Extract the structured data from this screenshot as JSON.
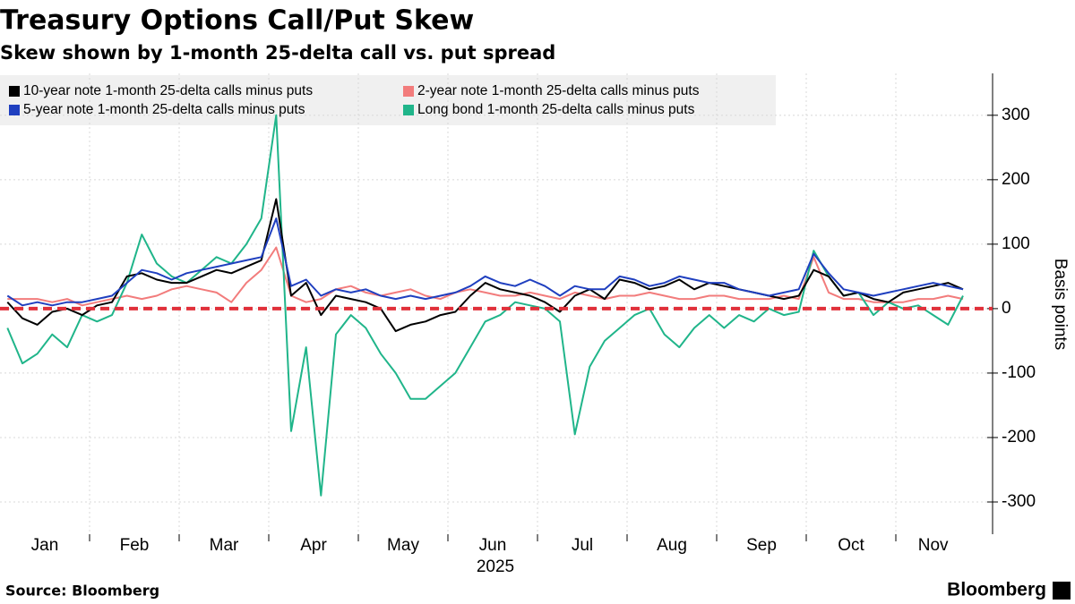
{
  "chart_data": {
    "type": "line",
    "title": "Treasury Options Call/Put Skew",
    "subtitle": "Skew shown by 1-month 25-delta call vs. put spread",
    "y_label": "Basis points",
    "source": "Source: Bloomberg",
    "brand": "Bloomberg",
    "x_year_label": "2025",
    "month_labels": [
      "Jan",
      "Feb",
      "Mar",
      "Apr",
      "May",
      "Jun",
      "Jul",
      "Aug",
      "Sep",
      "Oct",
      "Nov"
    ],
    "x": [
      "2025-01",
      "2025-01",
      "2025-01",
      "2025-01",
      "2025-01",
      "2025-01",
      "2025-02",
      "2025-02",
      "2025-02",
      "2025-02",
      "2025-02",
      "2025-02",
      "2025-03",
      "2025-03",
      "2025-03",
      "2025-03",
      "2025-03",
      "2025-03",
      "2025-04",
      "2025-04",
      "2025-04",
      "2025-04",
      "2025-04",
      "2025-04",
      "2025-05",
      "2025-05",
      "2025-05",
      "2025-05",
      "2025-05",
      "2025-05",
      "2025-06",
      "2025-06",
      "2025-06",
      "2025-06",
      "2025-06",
      "2025-06",
      "2025-07",
      "2025-07",
      "2025-07",
      "2025-07",
      "2025-07",
      "2025-07",
      "2025-08",
      "2025-08",
      "2025-08",
      "2025-08",
      "2025-08",
      "2025-08",
      "2025-09",
      "2025-09",
      "2025-09",
      "2025-09",
      "2025-09",
      "2025-09",
      "2025-10",
      "2025-10",
      "2025-10",
      "2025-10",
      "2025-10",
      "2025-10",
      "2025-11",
      "2025-11",
      "2025-11",
      "2025-11",
      "2025-11"
    ],
    "series": [
      {
        "name": "10-year note 1-month 25-delta calls minus puts",
        "color": "#000000",
        "values": [
          10,
          -15,
          -25,
          -5,
          0,
          -10,
          5,
          10,
          50,
          55,
          45,
          40,
          40,
          50,
          60,
          55,
          65,
          75,
          170,
          20,
          40,
          -10,
          20,
          15,
          10,
          0,
          -35,
          -25,
          -20,
          -10,
          -5,
          20,
          40,
          30,
          25,
          20,
          10,
          -5,
          20,
          30,
          15,
          45,
          40,
          30,
          35,
          45,
          30,
          40,
          35,
          30,
          25,
          20,
          15,
          20,
          60,
          50,
          20,
          25,
          15,
          10,
          25,
          30,
          35,
          40,
          30
        ]
      },
      {
        "name": "2-year note 1-month 25-delta calls minus puts",
        "color": "#f27c7c",
        "values": [
          15,
          15,
          15,
          10,
          15,
          5,
          10,
          15,
          20,
          15,
          20,
          30,
          35,
          30,
          25,
          10,
          40,
          60,
          95,
          20,
          10,
          15,
          30,
          35,
          25,
          20,
          25,
          30,
          20,
          15,
          25,
          30,
          25,
          20,
          20,
          25,
          20,
          15,
          25,
          20,
          15,
          20,
          20,
          25,
          20,
          15,
          15,
          20,
          20,
          15,
          15,
          15,
          20,
          15,
          80,
          25,
          15,
          15,
          10,
          10,
          10,
          15,
          15,
          20,
          15
        ]
      },
      {
        "name": "5-year note 1-month 25-delta calls minus puts",
        "color": "#1f3fbf",
        "values": [
          20,
          5,
          10,
          5,
          10,
          10,
          15,
          20,
          40,
          60,
          55,
          45,
          55,
          60,
          65,
          70,
          75,
          80,
          140,
          35,
          45,
          20,
          30,
          25,
          30,
          20,
          15,
          20,
          15,
          20,
          25,
          35,
          50,
          40,
          35,
          45,
          35,
          20,
          35,
          30,
          30,
          50,
          45,
          35,
          40,
          50,
          45,
          40,
          40,
          30,
          25,
          20,
          25,
          30,
          85,
          55,
          30,
          25,
          20,
          25,
          30,
          35,
          40,
          35,
          30
        ]
      },
      {
        "name": "Long bond 1-month 25-delta calls minus puts",
        "color": "#20b58a",
        "values": [
          -30,
          -85,
          -70,
          -40,
          -60,
          -10,
          -20,
          -10,
          40,
          115,
          70,
          50,
          40,
          60,
          80,
          70,
          100,
          140,
          300,
          -190,
          -60,
          -290,
          -40,
          -10,
          -30,
          -70,
          -100,
          -140,
          -140,
          -120,
          -100,
          -60,
          -20,
          -10,
          10,
          5,
          0,
          -20,
          -195,
          -90,
          -50,
          -30,
          -10,
          0,
          -40,
          -60,
          -30,
          -10,
          -30,
          -10,
          -20,
          0,
          -10,
          -5,
          90,
          50,
          20,
          25,
          -10,
          10,
          0,
          5,
          -10,
          -25,
          20
        ]
      }
    ],
    "reference_line": 0,
    "reference_color": "#e0303a",
    "ylim": [
      -350,
      365
    ],
    "yticks": [
      -300,
      -200,
      -100,
      0,
      100,
      200,
      300
    ],
    "grid": true
  }
}
